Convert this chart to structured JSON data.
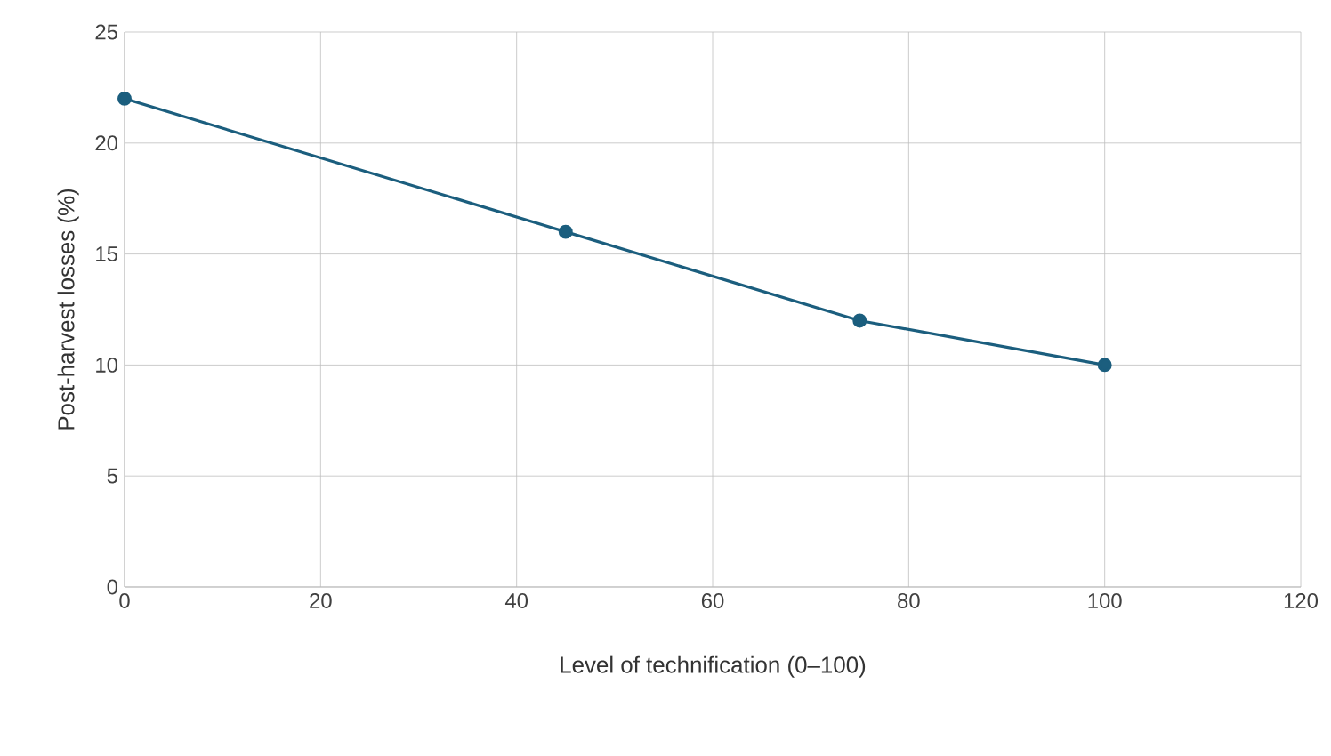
{
  "chart_data": {
    "type": "line",
    "xlabel": "Level of technification (0–100)",
    "ylabel": "Post-harvest losses (%)",
    "x": [
      0,
      45,
      75,
      100
    ],
    "series": [
      {
        "color": "#1b5e7e",
        "values": [
          22,
          16,
          12,
          10
        ]
      }
    ],
    "xlim": [
      0,
      120
    ],
    "xticks": [
      0,
      20,
      40,
      60,
      80,
      100,
      120
    ],
    "ylim": [
      0,
      25
    ],
    "yticks": [
      0,
      5,
      10,
      15,
      20,
      25
    ],
    "grid": true,
    "marker": "circle",
    "line_style": "solid"
  }
}
